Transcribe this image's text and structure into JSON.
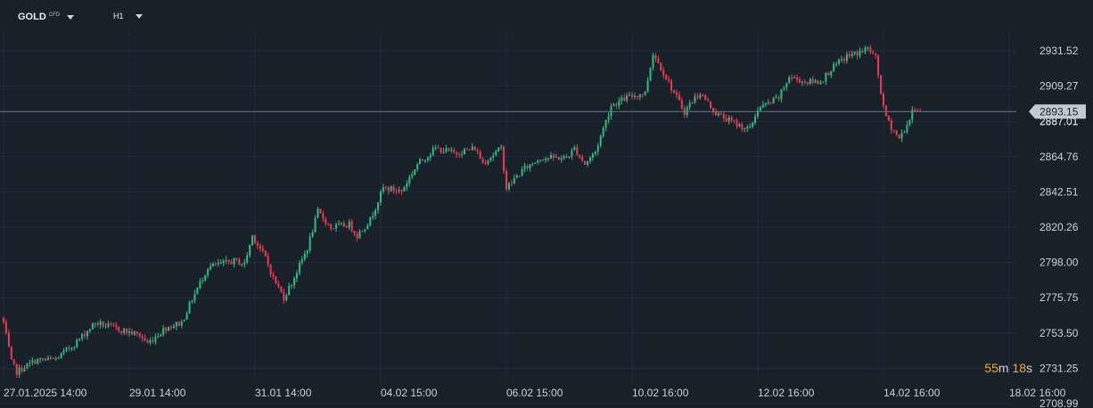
{
  "toolbar": {
    "symbol": "GOLD",
    "symbol_badge": "CFD",
    "timeframe": "H1"
  },
  "countdown": {
    "minutes": "55",
    "minutes_unit": "m",
    "seconds": "18",
    "seconds_unit": "s"
  },
  "price_line": {
    "label": "2893.15",
    "value": 2893.15,
    "partial_label": "2887.01"
  },
  "colors": {
    "background": "#18202a",
    "grid": "#222c37",
    "up": "#2dbd85",
    "down": "#ec3b54",
    "price_line": "#6b7785",
    "price_tag": "#c2cad3",
    "countdown": "#f5a623"
  },
  "chart_data": {
    "type": "candlestick",
    "symbol": "GOLD",
    "timeframe": "H1",
    "y_ticks": [
      2931.52,
      2909.27,
      2887.01,
      2864.76,
      2842.51,
      2820.26,
      2798.0,
      2775.75,
      2753.5,
      2731.25,
      2708.99
    ],
    "y_tick_labels": [
      "2931.52",
      "2909.27",
      "2887.01",
      "2864.76",
      "2842.51",
      "2820.26",
      "2798.00",
      "2775.75",
      "2753.50",
      "2731.25",
      "2708.99"
    ],
    "ylim": [
      2708.99,
      2940.0
    ],
    "x_ticks": [
      {
        "index": 0,
        "label": "27.01.2025  14:00"
      },
      {
        "index": 48,
        "label": "29.01  14:00"
      },
      {
        "index": 96,
        "label": "31.01  14:00"
      },
      {
        "index": 144,
        "label": "04.02  15:00"
      },
      {
        "index": 192,
        "label": "06.02  15:00"
      },
      {
        "index": 240,
        "label": "10.02  16:00"
      },
      {
        "index": 288,
        "label": "12.02  16:00"
      },
      {
        "index": 336,
        "label": "14.02  16:00"
      },
      {
        "index": 384,
        "label": "18.02  16:00"
      }
    ],
    "grid": true,
    "bars_visible": 350,
    "close_path": [
      [
        0,
        2760
      ],
      [
        3,
        2735
      ],
      [
        5,
        2729
      ],
      [
        12,
        2736
      ],
      [
        20,
        2737
      ],
      [
        28,
        2748
      ],
      [
        35,
        2760
      ],
      [
        48,
        2754
      ],
      [
        52,
        2752
      ],
      [
        55,
        2747
      ],
      [
        62,
        2757
      ],
      [
        68,
        2760
      ],
      [
        72,
        2775
      ],
      [
        78,
        2795
      ],
      [
        88,
        2799
      ],
      [
        92,
        2797
      ],
      [
        95,
        2815
      ],
      [
        100,
        2801
      ],
      [
        103,
        2788
      ],
      [
        107,
        2776
      ],
      [
        110,
        2785
      ],
      [
        116,
        2807
      ],
      [
        120,
        2830
      ],
      [
        125,
        2820
      ],
      [
        132,
        2822
      ],
      [
        135,
        2815
      ],
      [
        140,
        2825
      ],
      [
        145,
        2845
      ],
      [
        152,
        2843
      ],
      [
        158,
        2860
      ],
      [
        165,
        2870
      ],
      [
        172,
        2867
      ],
      [
        180,
        2870
      ],
      [
        183,
        2861
      ],
      [
        190,
        2870
      ],
      [
        192,
        2845
      ],
      [
        198,
        2856
      ],
      [
        205,
        2864
      ],
      [
        215,
        2864
      ],
      [
        218,
        2870
      ],
      [
        222,
        2860
      ],
      [
        226,
        2868
      ],
      [
        232,
        2897
      ],
      [
        238,
        2902
      ],
      [
        245,
        2905
      ],
      [
        248,
        2930
      ],
      [
        252,
        2918
      ],
      [
        256,
        2905
      ],
      [
        260,
        2893
      ],
      [
        263,
        2900
      ],
      [
        266,
        2905
      ],
      [
        272,
        2892
      ],
      [
        280,
        2885
      ],
      [
        285,
        2882
      ],
      [
        288,
        2895
      ],
      [
        292,
        2898
      ],
      [
        296,
        2902
      ],
      [
        300,
        2915
      ],
      [
        306,
        2912
      ],
      [
        312,
        2912
      ],
      [
        316,
        2920
      ],
      [
        322,
        2928
      ],
      [
        326,
        2930
      ],
      [
        330,
        2933
      ],
      [
        333,
        2927
      ],
      [
        336,
        2895
      ],
      [
        338,
        2886
      ],
      [
        342,
        2876
      ],
      [
        345,
        2885
      ],
      [
        348,
        2896
      ],
      [
        350,
        2893.15
      ]
    ]
  }
}
